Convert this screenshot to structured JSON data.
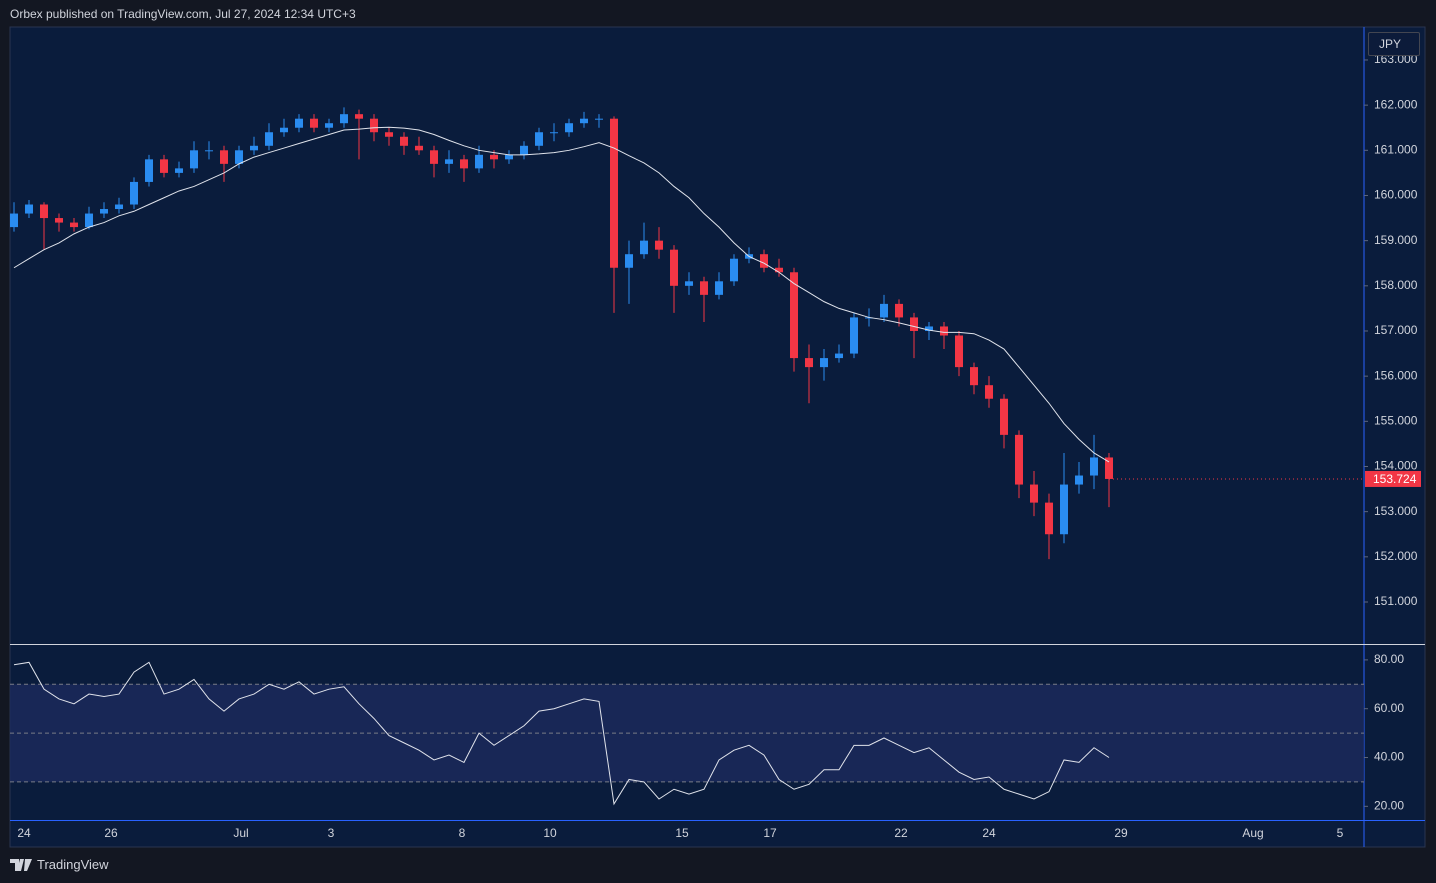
{
  "header": {
    "text": "Orbex published on TradingView.com, Jul 27, 2024 12:34 UTC+3"
  },
  "footer": {
    "brand": "TradingView"
  },
  "x_axis": {
    "labels": [
      "24",
      "26",
      "Jul",
      "3",
      "8",
      "10",
      "15",
      "17",
      "22",
      "24",
      "29",
      "Aug",
      "5"
    ]
  },
  "chart_data": [
    {
      "type": "candlestick",
      "currency": "JPY",
      "up_color": "#2a8cf0",
      "down_color": "#f23645",
      "ylim": [
        150.07,
        163.73
      ],
      "yticks": [
        {
          "value": 151,
          "label": "151.000"
        },
        {
          "value": 152,
          "label": "152.000"
        },
        {
          "value": 153,
          "label": "153.000"
        },
        {
          "value": 154,
          "label": "154.000"
        },
        {
          "value": 155,
          "label": "155.000"
        },
        {
          "value": 156,
          "label": "156.000"
        },
        {
          "value": 157,
          "label": "157.000"
        },
        {
          "value": 158,
          "label": "158.000"
        },
        {
          "value": 159,
          "label": "159.000"
        },
        {
          "value": 160,
          "label": "160.000"
        },
        {
          "value": 161,
          "label": "161.000"
        },
        {
          "value": 162,
          "label": "162.000"
        },
        {
          "value": 163,
          "label": "163.000"
        }
      ],
      "open": [
        159.3,
        159.6,
        159.8,
        159.5,
        159.4,
        159.3,
        159.6,
        159.7,
        159.8,
        160.3,
        160.8,
        160.5,
        160.6,
        161.0,
        161.0,
        160.7,
        161.0,
        161.1,
        161.4,
        161.5,
        161.7,
        161.5,
        161.6,
        161.8,
        161.7,
        161.4,
        161.3,
        161.1,
        161.0,
        160.7,
        160.8,
        160.6,
        160.9,
        160.8,
        160.9,
        161.1,
        161.4,
        161.4,
        161.6,
        161.7,
        161.7,
        158.4,
        158.7,
        159.0,
        158.8,
        158.0,
        158.1,
        157.8,
        158.1,
        158.6,
        158.7,
        158.4,
        158.3,
        156.4,
        156.2,
        156.4,
        156.5,
        157.3,
        157.3,
        157.6,
        157.3,
        157.0,
        157.1,
        156.9,
        156.2,
        155.8,
        155.5,
        154.7,
        153.6,
        153.2,
        152.5,
        153.6,
        153.8,
        154.2
      ],
      "high": [
        159.85,
        159.9,
        159.85,
        159.6,
        159.5,
        159.75,
        159.85,
        159.95,
        160.4,
        160.9,
        160.9,
        160.75,
        161.2,
        161.2,
        161.1,
        161.1,
        161.3,
        161.6,
        161.7,
        161.8,
        161.8,
        161.7,
        161.95,
        161.9,
        161.8,
        161.5,
        161.4,
        161.3,
        161.1,
        161.0,
        160.9,
        161.1,
        161.0,
        161.0,
        161.2,
        161.5,
        161.6,
        161.7,
        161.85,
        161.8,
        161.75,
        159.0,
        159.4,
        159.3,
        158.9,
        158.3,
        158.2,
        158.3,
        158.7,
        158.85,
        158.8,
        158.6,
        158.4,
        156.7,
        156.6,
        156.7,
        157.4,
        157.5,
        157.8,
        157.7,
        157.4,
        157.2,
        157.2,
        157.0,
        156.3,
        156.0,
        155.6,
        154.8,
        153.9,
        153.4,
        154.3,
        154.1,
        154.7,
        154.3
      ],
      "low": [
        159.2,
        159.5,
        158.8,
        159.2,
        159.2,
        159.25,
        159.5,
        159.6,
        159.7,
        160.2,
        160.4,
        160.4,
        160.5,
        160.8,
        160.3,
        160.6,
        160.9,
        161.0,
        161.3,
        161.4,
        161.4,
        161.4,
        161.5,
        160.8,
        161.2,
        161.1,
        160.9,
        160.9,
        160.4,
        160.5,
        160.3,
        160.5,
        160.6,
        160.7,
        160.8,
        161.0,
        161.2,
        161.3,
        161.5,
        161.5,
        157.4,
        157.6,
        158.6,
        158.6,
        157.4,
        157.8,
        157.2,
        157.7,
        158.0,
        158.5,
        158.3,
        158.2,
        156.1,
        155.4,
        155.9,
        156.3,
        156.4,
        157.1,
        157.2,
        157.1,
        156.4,
        156.8,
        156.6,
        156.0,
        155.6,
        155.3,
        154.4,
        153.3,
        152.9,
        151.95,
        152.3,
        153.4,
        153.5,
        153.1
      ],
      "close": [
        159.6,
        159.8,
        159.5,
        159.4,
        159.3,
        159.6,
        159.7,
        159.8,
        160.3,
        160.8,
        160.5,
        160.6,
        161.0,
        161.0,
        160.7,
        161.0,
        161.1,
        161.4,
        161.5,
        161.7,
        161.5,
        161.6,
        161.8,
        161.7,
        161.4,
        161.3,
        161.1,
        161.0,
        160.7,
        160.8,
        160.6,
        160.9,
        160.8,
        160.9,
        161.1,
        161.4,
        161.4,
        161.6,
        161.7,
        161.7,
        158.4,
        158.7,
        159.0,
        158.8,
        158.0,
        158.1,
        157.8,
        158.1,
        158.6,
        158.7,
        158.4,
        158.3,
        156.4,
        156.2,
        156.4,
        156.5,
        157.3,
        157.3,
        157.6,
        157.3,
        157.0,
        157.1,
        156.9,
        156.2,
        155.8,
        155.5,
        154.7,
        153.6,
        153.2,
        152.5,
        153.6,
        153.8,
        154.2,
        153.724
      ],
      "ma": {
        "color": "#e0e3eb",
        "values": [
          158.4,
          158.6,
          158.8,
          158.95,
          159.15,
          159.3,
          159.4,
          159.55,
          159.65,
          159.8,
          159.95,
          160.1,
          160.2,
          160.35,
          160.5,
          160.7,
          160.85,
          160.95,
          161.05,
          161.15,
          161.25,
          161.35,
          161.45,
          161.47,
          161.5,
          161.51,
          161.49,
          161.45,
          161.35,
          161.22,
          161.1,
          161.0,
          160.95,
          160.9,
          160.9,
          160.92,
          160.95,
          161.0,
          161.08,
          161.17,
          161.05,
          160.88,
          160.72,
          160.5,
          160.2,
          159.95,
          159.6,
          159.3,
          158.95,
          158.65,
          158.5,
          158.3,
          158.05,
          157.85,
          157.65,
          157.5,
          157.4,
          157.3,
          157.25,
          157.18,
          157.1,
          157.02,
          156.97,
          156.97,
          156.94,
          156.8,
          156.6,
          156.2,
          155.8,
          155.4,
          154.95,
          154.6,
          154.3,
          154.1
        ]
      }
    },
    {
      "type": "line",
      "color": "#e0e3eb",
      "ylim": [
        14.4,
        86.1
      ],
      "bands": [
        70,
        50,
        30
      ],
      "band_fill": "#1b2b5c",
      "yticks": [
        {
          "value": 20,
          "label": "20.00"
        },
        {
          "value": 40,
          "label": "40.00"
        },
        {
          "value": 60,
          "label": "60.00"
        },
        {
          "value": 80,
          "label": "80.00"
        }
      ],
      "values": [
        78,
        79,
        68,
        64,
        62,
        66,
        65,
        66,
        75,
        79,
        66,
        68,
        72,
        64,
        59,
        64,
        66,
        70,
        68,
        71,
        66,
        68,
        69,
        62,
        56,
        49,
        46,
        43,
        39,
        41,
        38,
        50,
        45,
        49,
        53,
        59,
        60,
        62,
        64,
        63,
        21,
        31,
        30,
        23,
        27,
        25,
        27,
        39,
        43,
        45,
        41,
        31,
        27,
        29,
        35,
        35,
        45,
        45,
        48,
        45,
        42,
        44,
        39,
        34,
        31,
        32,
        27,
        25,
        23,
        26,
        39,
        38,
        44,
        40
      ]
    }
  ]
}
